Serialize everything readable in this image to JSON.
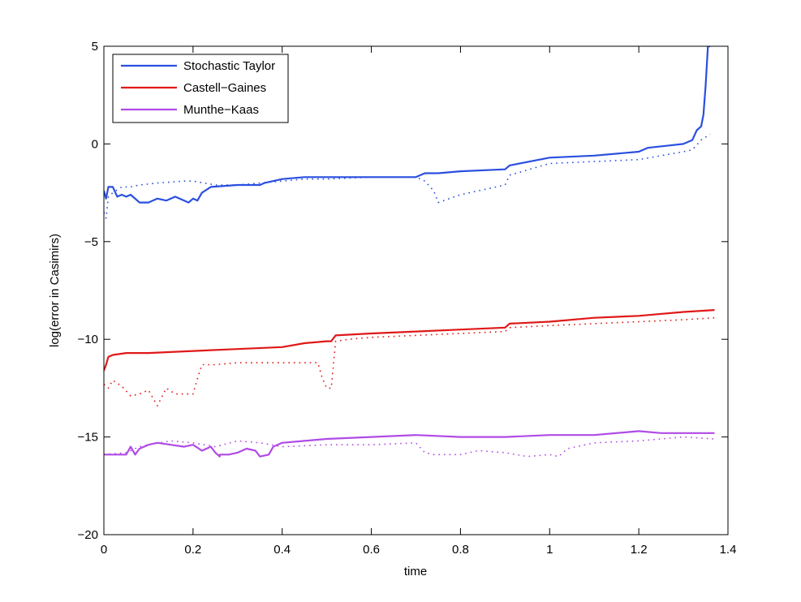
{
  "chart_data": {
    "type": "line",
    "title": "",
    "xlabel": "time",
    "ylabel": "log(error in Casimirs)",
    "xlim": [
      0,
      1.4
    ],
    "ylim": [
      -20,
      5
    ],
    "xticks": [
      0,
      0.2,
      0.4,
      0.6,
      0.8,
      1,
      1.2,
      1.4
    ],
    "xtick_labels": [
      "0",
      "0.2",
      "0.4",
      "0.6",
      "0.8",
      "1",
      "1.2",
      "1.4"
    ],
    "yticks": [
      -20,
      -15,
      -10,
      -5,
      0,
      5
    ],
    "ytick_labels": [
      "−20",
      "−15",
      "−10",
      "−5",
      "0",
      "5"
    ],
    "grid": false,
    "legend": {
      "position": "top-left",
      "entries": [
        "Stochastic Taylor",
        "Castell−Gaines",
        "Munthe−Kaas"
      ]
    },
    "series": [
      {
        "name": "Stochastic Taylor",
        "style": "solid",
        "color": "#2a4fe0",
        "x": [
          0.0,
          0.005,
          0.01,
          0.02,
          0.03,
          0.04,
          0.05,
          0.06,
          0.08,
          0.1,
          0.12,
          0.14,
          0.16,
          0.18,
          0.19,
          0.2,
          0.21,
          0.22,
          0.24,
          0.3,
          0.35,
          0.36,
          0.4,
          0.45,
          0.5,
          0.52,
          0.55,
          0.6,
          0.7,
          0.72,
          0.75,
          0.8,
          0.9,
          0.91,
          1.0,
          1.1,
          1.2,
          1.22,
          1.26,
          1.3,
          1.32,
          1.33,
          1.34,
          1.345,
          1.35,
          1.355,
          1.36
        ],
        "y": [
          -2.4,
          -2.8,
          -2.2,
          -2.2,
          -2.7,
          -2.6,
          -2.7,
          -2.6,
          -3.0,
          -3.0,
          -2.8,
          -2.9,
          -2.7,
          -2.9,
          -3.0,
          -2.8,
          -2.9,
          -2.5,
          -2.2,
          -2.1,
          -2.1,
          -2.0,
          -1.8,
          -1.7,
          -1.7,
          -1.7,
          -1.7,
          -1.7,
          -1.7,
          -1.5,
          -1.5,
          -1.4,
          -1.3,
          -1.1,
          -0.7,
          -0.6,
          -0.4,
          -0.2,
          -0.1,
          0.0,
          0.2,
          0.7,
          0.9,
          1.5,
          3.0,
          5.0,
          5.0
        ]
      },
      {
        "name": "",
        "style": "dotted",
        "color": "#2a4fe0",
        "x": [
          0.0,
          0.005,
          0.01,
          0.02,
          0.04,
          0.06,
          0.08,
          0.12,
          0.18,
          0.2,
          0.25,
          0.3,
          0.35,
          0.4,
          0.45,
          0.5,
          0.6,
          0.7,
          0.72,
          0.74,
          0.75,
          0.8,
          0.9,
          0.91,
          1.0,
          1.1,
          1.2,
          1.3,
          1.32,
          1.34,
          1.36
        ],
        "y": [
          -3.5,
          -3.8,
          -2.7,
          -2.5,
          -2.2,
          -2.2,
          -2.1,
          -2.0,
          -1.9,
          -1.9,
          -2.1,
          -2.1,
          -2.0,
          -1.9,
          -1.8,
          -1.8,
          -1.7,
          -1.7,
          -1.9,
          -2.4,
          -3.0,
          -2.6,
          -2.1,
          -1.6,
          -1.0,
          -0.9,
          -0.8,
          -0.4,
          -0.3,
          0.2,
          0.5
        ]
      },
      {
        "name": "Castell−Gaines",
        "style": "solid",
        "color": "#e01818",
        "x": [
          0.0,
          0.005,
          0.01,
          0.02,
          0.05,
          0.1,
          0.2,
          0.3,
          0.4,
          0.45,
          0.5,
          0.51,
          0.52,
          0.6,
          0.7,
          0.8,
          0.9,
          0.91,
          1.0,
          1.1,
          1.2,
          1.3,
          1.37
        ],
        "y": [
          -11.6,
          -11.3,
          -10.9,
          -10.8,
          -10.7,
          -10.7,
          -10.6,
          -10.5,
          -10.4,
          -10.2,
          -10.1,
          -10.1,
          -9.8,
          -9.7,
          -9.6,
          -9.5,
          -9.4,
          -9.2,
          -9.1,
          -8.9,
          -8.8,
          -8.6,
          -8.5
        ]
      },
      {
        "name": "",
        "style": "dotted",
        "color": "#e01818",
        "x": [
          0.0,
          0.01,
          0.02,
          0.04,
          0.06,
          0.08,
          0.1,
          0.12,
          0.14,
          0.16,
          0.18,
          0.2,
          0.21,
          0.22,
          0.25,
          0.3,
          0.35,
          0.4,
          0.45,
          0.48,
          0.49,
          0.5,
          0.51,
          0.52,
          0.55,
          0.6,
          0.7,
          0.8,
          0.9,
          0.91,
          1.0,
          1.1,
          1.2,
          1.3,
          1.37
        ],
        "y": [
          -12.3,
          -12.5,
          -12.1,
          -12.4,
          -12.9,
          -12.8,
          -12.6,
          -13.4,
          -12.5,
          -12.8,
          -12.8,
          -12.8,
          -12.0,
          -11.3,
          -11.3,
          -11.2,
          -11.2,
          -11.2,
          -11.2,
          -11.2,
          -12.0,
          -12.5,
          -12.5,
          -10.1,
          -10.0,
          -9.9,
          -9.8,
          -9.7,
          -9.6,
          -9.4,
          -9.3,
          -9.2,
          -9.1,
          -9.0,
          -8.9
        ]
      },
      {
        "name": "Munthe−Kaas",
        "style": "solid",
        "color": "#b04be6",
        "x": [
          0.0,
          0.05,
          0.06,
          0.07,
          0.08,
          0.1,
          0.12,
          0.15,
          0.18,
          0.2,
          0.22,
          0.24,
          0.25,
          0.26,
          0.26,
          0.28,
          0.3,
          0.32,
          0.34,
          0.35,
          0.37,
          0.38,
          0.4,
          0.45,
          0.5,
          0.6,
          0.7,
          0.8,
          0.9,
          1.0,
          1.1,
          1.2,
          1.25,
          1.3,
          1.37
        ],
        "y": [
          -15.9,
          -15.9,
          -15.5,
          -15.9,
          -15.6,
          -15.4,
          -15.3,
          -15.4,
          -15.5,
          -15.4,
          -15.7,
          -15.5,
          -15.8,
          -16.0,
          -15.9,
          -15.9,
          -15.8,
          -15.6,
          -15.7,
          -16.0,
          -15.9,
          -15.5,
          -15.3,
          -15.2,
          -15.1,
          -15.0,
          -14.9,
          -15.0,
          -15.0,
          -14.9,
          -14.9,
          -14.7,
          -14.8,
          -14.8,
          -14.8
        ]
      },
      {
        "name": "",
        "style": "dotted",
        "color": "#b04be6",
        "x": [
          0.0,
          0.05,
          0.08,
          0.1,
          0.15,
          0.2,
          0.25,
          0.3,
          0.35,
          0.4,
          0.5,
          0.6,
          0.7,
          0.72,
          0.74,
          0.8,
          0.84,
          0.9,
          0.95,
          1.0,
          1.02,
          1.04,
          1.1,
          1.2,
          1.3,
          1.37
        ],
        "y": [
          -15.9,
          -15.8,
          -15.5,
          -15.4,
          -15.2,
          -15.3,
          -15.5,
          -15.2,
          -15.3,
          -15.5,
          -15.4,
          -15.4,
          -15.3,
          -15.8,
          -15.9,
          -15.9,
          -15.7,
          -15.8,
          -16.0,
          -15.9,
          -16.0,
          -15.6,
          -15.3,
          -15.2,
          -15.0,
          -15.1
        ]
      }
    ]
  }
}
